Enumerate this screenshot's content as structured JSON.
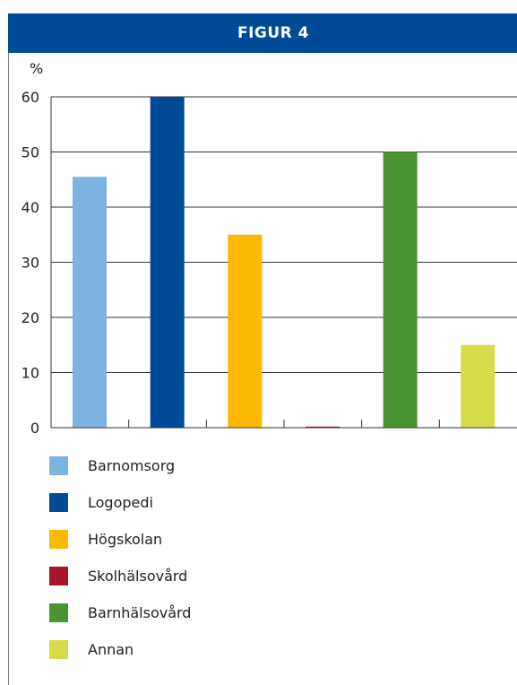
{
  "figure": {
    "title": "FIGUR 4"
  },
  "chart_data": {
    "type": "bar",
    "ylabel": "%",
    "ylim": [
      0,
      60
    ],
    "yticks": [
      "0",
      "10",
      "20",
      "30",
      "40",
      "50",
      "60"
    ],
    "grid": true,
    "legend_position": "bottom",
    "categories": [
      "Barnomsorg",
      "Logopedi",
      "Högskolan",
      "Skolhälsovård",
      "Barnhälsovård",
      "Annan"
    ],
    "values": [
      45.5,
      60,
      35,
      0.2,
      50,
      15
    ],
    "colors": [
      "#7fb3e2",
      "#004a98",
      "#fbb900",
      "#a8152b",
      "#4a9431",
      "#d8dc4b"
    ]
  }
}
